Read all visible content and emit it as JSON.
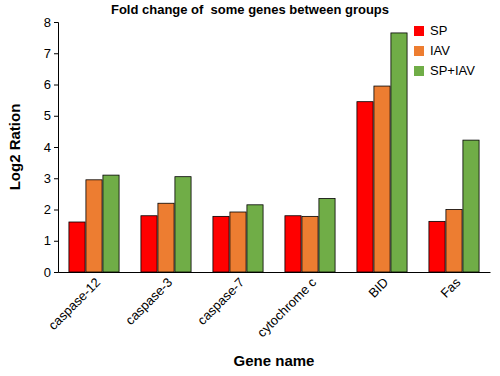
{
  "chart_data": {
    "type": "bar",
    "title": "Fold change of  some genes between groups",
    "x_label": "Gene name",
    "y_label": "Log2 Ration",
    "categories": [
      "caspase-12",
      "caspase-3",
      "caspase-7",
      "cytochrome c",
      "BID",
      "Fas"
    ],
    "series": [
      {
        "name": "SP",
        "color": "#ff0000",
        "values": [
          1.6,
          1.8,
          1.78,
          1.8,
          5.45,
          1.62
        ]
      },
      {
        "name": "IAV",
        "color": "#ed7d31",
        "values": [
          2.95,
          2.2,
          1.92,
          1.78,
          5.95,
          2.0
        ]
      },
      {
        "name": "SP+IAV",
        "color": "#70ad47",
        "values": [
          3.1,
          3.05,
          2.15,
          2.35,
          7.65,
          4.22
        ]
      }
    ],
    "ylim": [
      0,
      8
    ],
    "yticks": [
      0,
      1,
      2,
      3,
      4,
      5,
      6,
      7,
      8
    ],
    "grid": false,
    "legend": "top-right"
  }
}
